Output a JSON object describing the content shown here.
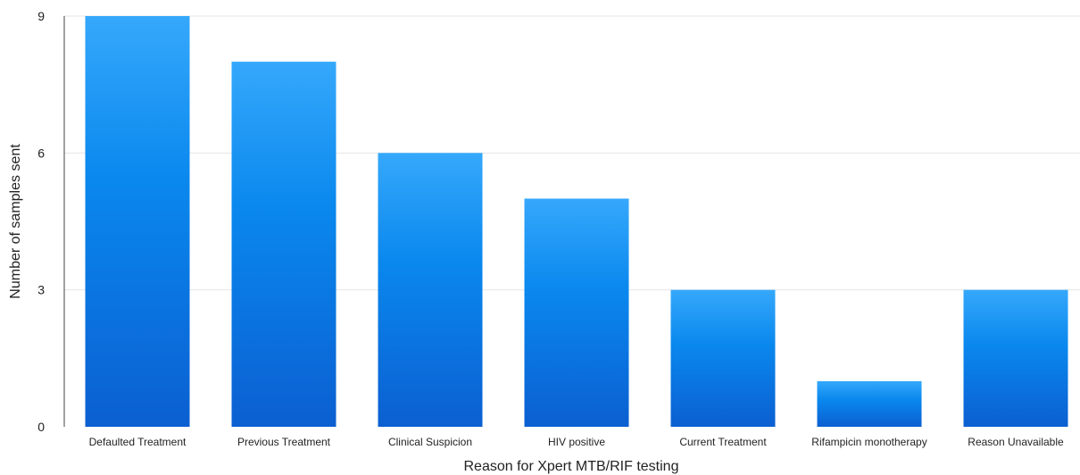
{
  "chart_data": {
    "type": "bar",
    "title": "",
    "xlabel": "Reason for Xpert MTB/RIF testing",
    "ylabel": "Number of samples sent",
    "categories": [
      "Defaulted Treatment",
      "Previous Treatment",
      "Clinical Suspicion",
      "HIV positive",
      "Current Treatment",
      "Rifampicin monotherapy",
      "Reason Unavailable"
    ],
    "values": [
      9,
      8,
      6,
      5,
      3,
      1,
      3
    ],
    "ylim": [
      0,
      9
    ],
    "yticks": [
      "0",
      "3",
      "6",
      "9"
    ],
    "grid": true,
    "legend": "none",
    "colors": {
      "bar_top": "#35a8fb",
      "bar_mid": "#0a88ee",
      "bar_bottom": "#0b5fd1",
      "grid": "#e6e6e6",
      "axis": "#444444"
    }
  }
}
